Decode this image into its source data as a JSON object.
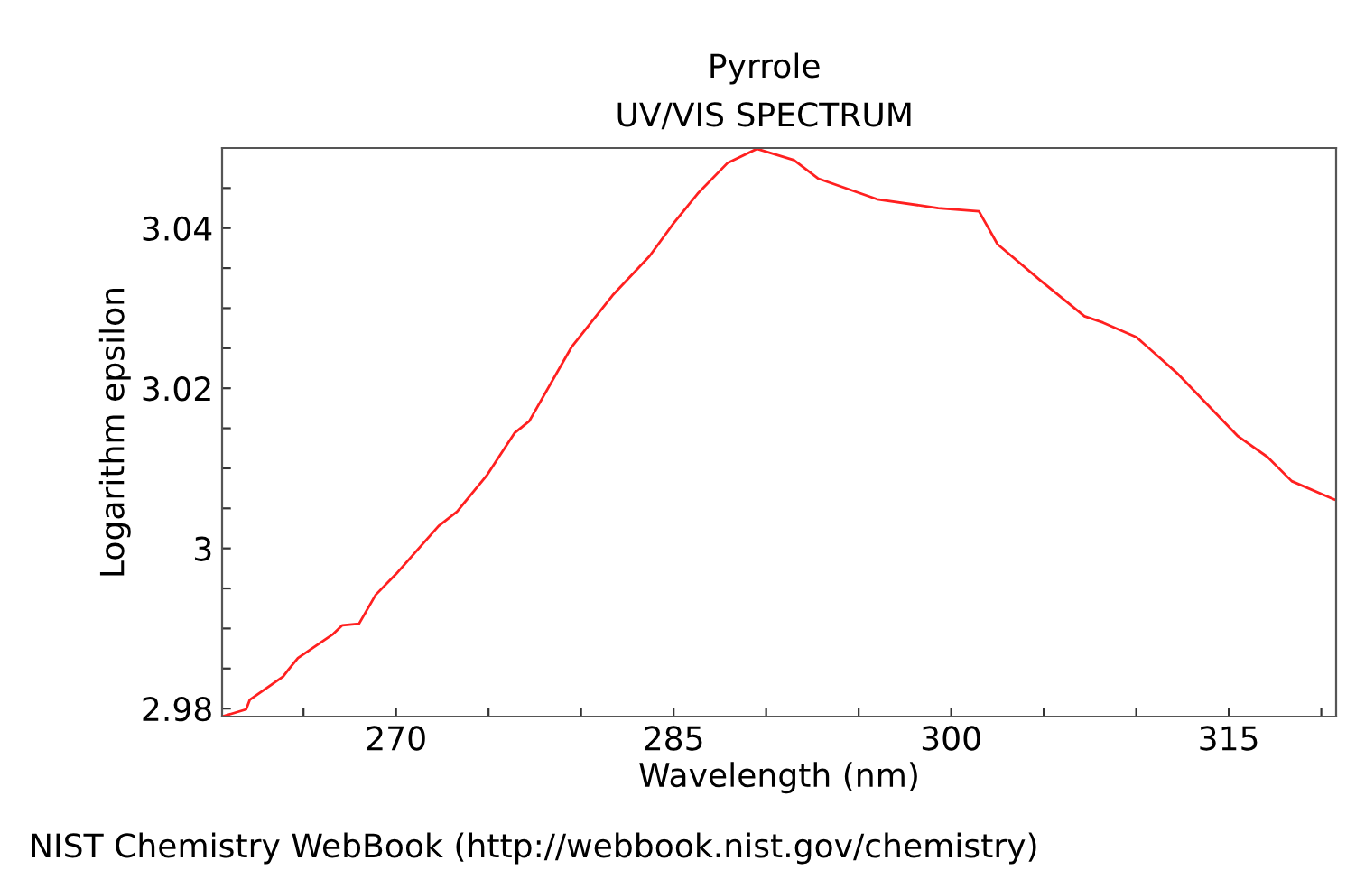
{
  "chart_data": {
    "type": "line",
    "title": "Pyrrole",
    "subtitle": "UV/VIS SPECTRUM",
    "xlabel": "Wavelength (nm)",
    "ylabel": "Logarithm epsilon",
    "annotations": [
      "NIST Chemistry WebBook (http://webbook.nist.gov/chemistry)"
    ],
    "xlim": [
      260.6,
      320.8
    ],
    "ylim": [
      2.979,
      3.05
    ],
    "xticks": [
      {
        "value": 265,
        "label": null
      },
      270,
      {
        "value": 275,
        "label": null
      },
      {
        "value": 280,
        "label": null
      },
      285,
      {
        "value": 290,
        "label": null
      },
      {
        "value": 295,
        "label": null
      },
      300,
      {
        "value": 305,
        "label": null
      },
      {
        "value": 310,
        "label": null
      },
      315,
      {
        "value": 320,
        "label": null
      }
    ],
    "yticks": [
      2.98,
      {
        "value": 2.985,
        "label": null
      },
      {
        "value": 2.99,
        "label": null
      },
      {
        "value": 2.995,
        "label": null
      },
      3,
      {
        "value": 3.005,
        "label": null
      },
      {
        "value": 3.01,
        "label": null
      },
      {
        "value": 3.015,
        "label": null
      },
      3.02,
      {
        "value": 3.025,
        "label": null
      },
      {
        "value": 3.03,
        "label": null
      },
      {
        "value": 3.035,
        "label": null
      },
      3.04,
      {
        "value": 3.045,
        "label": null
      }
    ],
    "grid": false,
    "legend": false,
    "marker": "none",
    "line_style": "solid",
    "series": [
      {
        "color": "#ff2020",
        "x": [
          260.6,
          261.9,
          262.1,
          263.9,
          264.2,
          264.7,
          266.6,
          267.1,
          268.0,
          268.9,
          270.0,
          272.3,
          273.3,
          274.9,
          276.4,
          277.2,
          279.5,
          281.7,
          283.7,
          285.0,
          286.3,
          287.9,
          289.5,
          291.5,
          292.8,
          296.0,
          299.3,
          301.5,
          302.5,
          304.8,
          307.2,
          308.2,
          310.0,
          312.2,
          315.5,
          317.1,
          318.4,
          320.7
        ],
        "values": [
          2.979,
          2.9799,
          2.9811,
          2.984,
          2.9849,
          2.9863,
          2.9893,
          2.9904,
          2.9906,
          2.9942,
          2.9968,
          3.0028,
          3.0046,
          3.0091,
          3.0144,
          3.0159,
          3.0252,
          3.0316,
          3.0365,
          3.0406,
          3.0443,
          3.0481,
          3.0499,
          3.0485,
          3.0462,
          3.0436,
          3.0425,
          3.0421,
          3.038,
          3.0335,
          3.029,
          3.0282,
          3.0264,
          3.0219,
          3.014,
          3.0114,
          3.0084,
          3.0061
        ]
      }
    ]
  }
}
